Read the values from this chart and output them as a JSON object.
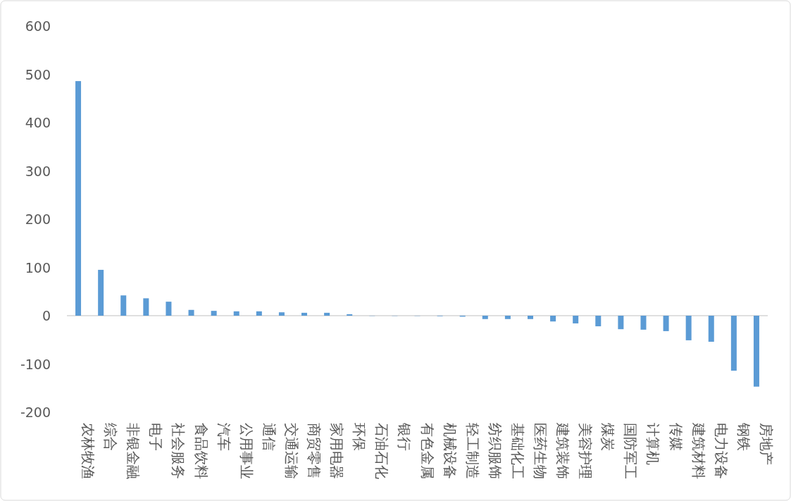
{
  "chart_data": {
    "type": "bar",
    "categories": [
      "农林牧渔",
      "综合",
      "非银金融",
      "电子",
      "社会服务",
      "食品饮料",
      "汽车",
      "公用事业",
      "通信",
      "交通运输",
      "商贸零售",
      "家用电器",
      "环保",
      "石油石化",
      "银行",
      "有色金属",
      "机械设备",
      "轻工制造",
      "纺织服饰",
      "基础化工",
      "医药生物",
      "建筑装饰",
      "美容护理",
      "煤炭",
      "国防军工",
      "计算机",
      "传媒",
      "建筑材料",
      "电力设备",
      "钢铁",
      "房地产"
    ],
    "values": [
      486,
      95,
      42,
      36,
      29,
      12,
      10,
      9,
      9,
      7,
      6,
      6,
      3,
      0,
      0,
      0,
      -1,
      -2,
      -7,
      -7,
      -7,
      -12,
      -16,
      -22,
      -28,
      -29,
      -32,
      -51,
      -54,
      -114,
      -147
    ],
    "color": "#5b9bd5",
    "ylim": [
      -200,
      600
    ],
    "yticks": [
      -200,
      -100,
      0,
      100,
      200,
      300,
      400,
      500,
      600
    ]
  }
}
